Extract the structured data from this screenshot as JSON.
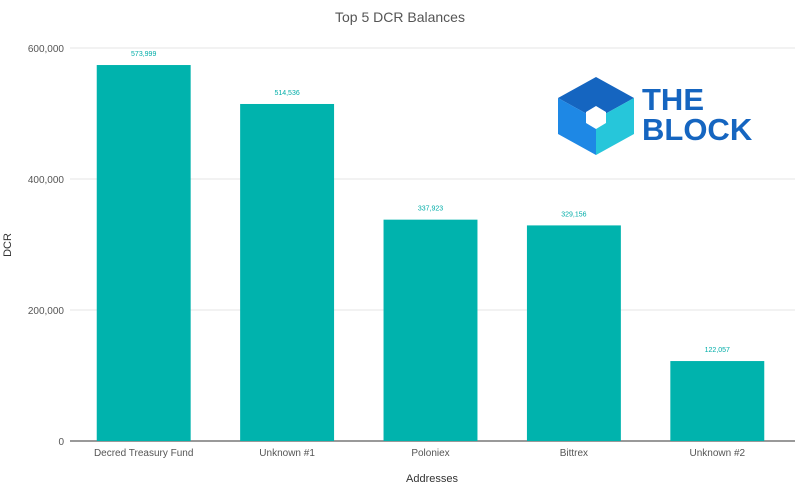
{
  "chart_data": {
    "type": "bar",
    "title": "Top 5 DCR Balances",
    "xlabel": "Addresses",
    "ylabel": "DCR",
    "categories": [
      "Decred Treasury Fund",
      "Unknown #1",
      "Poloniex",
      "Bittrex",
      "Unknown #2"
    ],
    "values": [
      573999,
      514536,
      337923,
      329156,
      122057
    ],
    "value_labels": [
      "573,999",
      "514,536",
      "337,923",
      "329,156",
      "122,057"
    ],
    "ylim": [
      0,
      600000
    ],
    "yticks": [
      0,
      200000,
      400000,
      600000
    ],
    "ytick_labels": [
      "0",
      "200,000",
      "400,000",
      "600,000"
    ],
    "grid": true,
    "legend": "none",
    "bar_color": "#00b3ad",
    "label_color": "#00ada8",
    "grid_color": "#e6e6e6"
  },
  "logo": {
    "line1": "THE",
    "line2": "BLOCK",
    "text_color": "#1565c0",
    "cube_colors": [
      "#1565c0",
      "#1e88e5",
      "#29b6f6",
      "#26c6da"
    ]
  }
}
